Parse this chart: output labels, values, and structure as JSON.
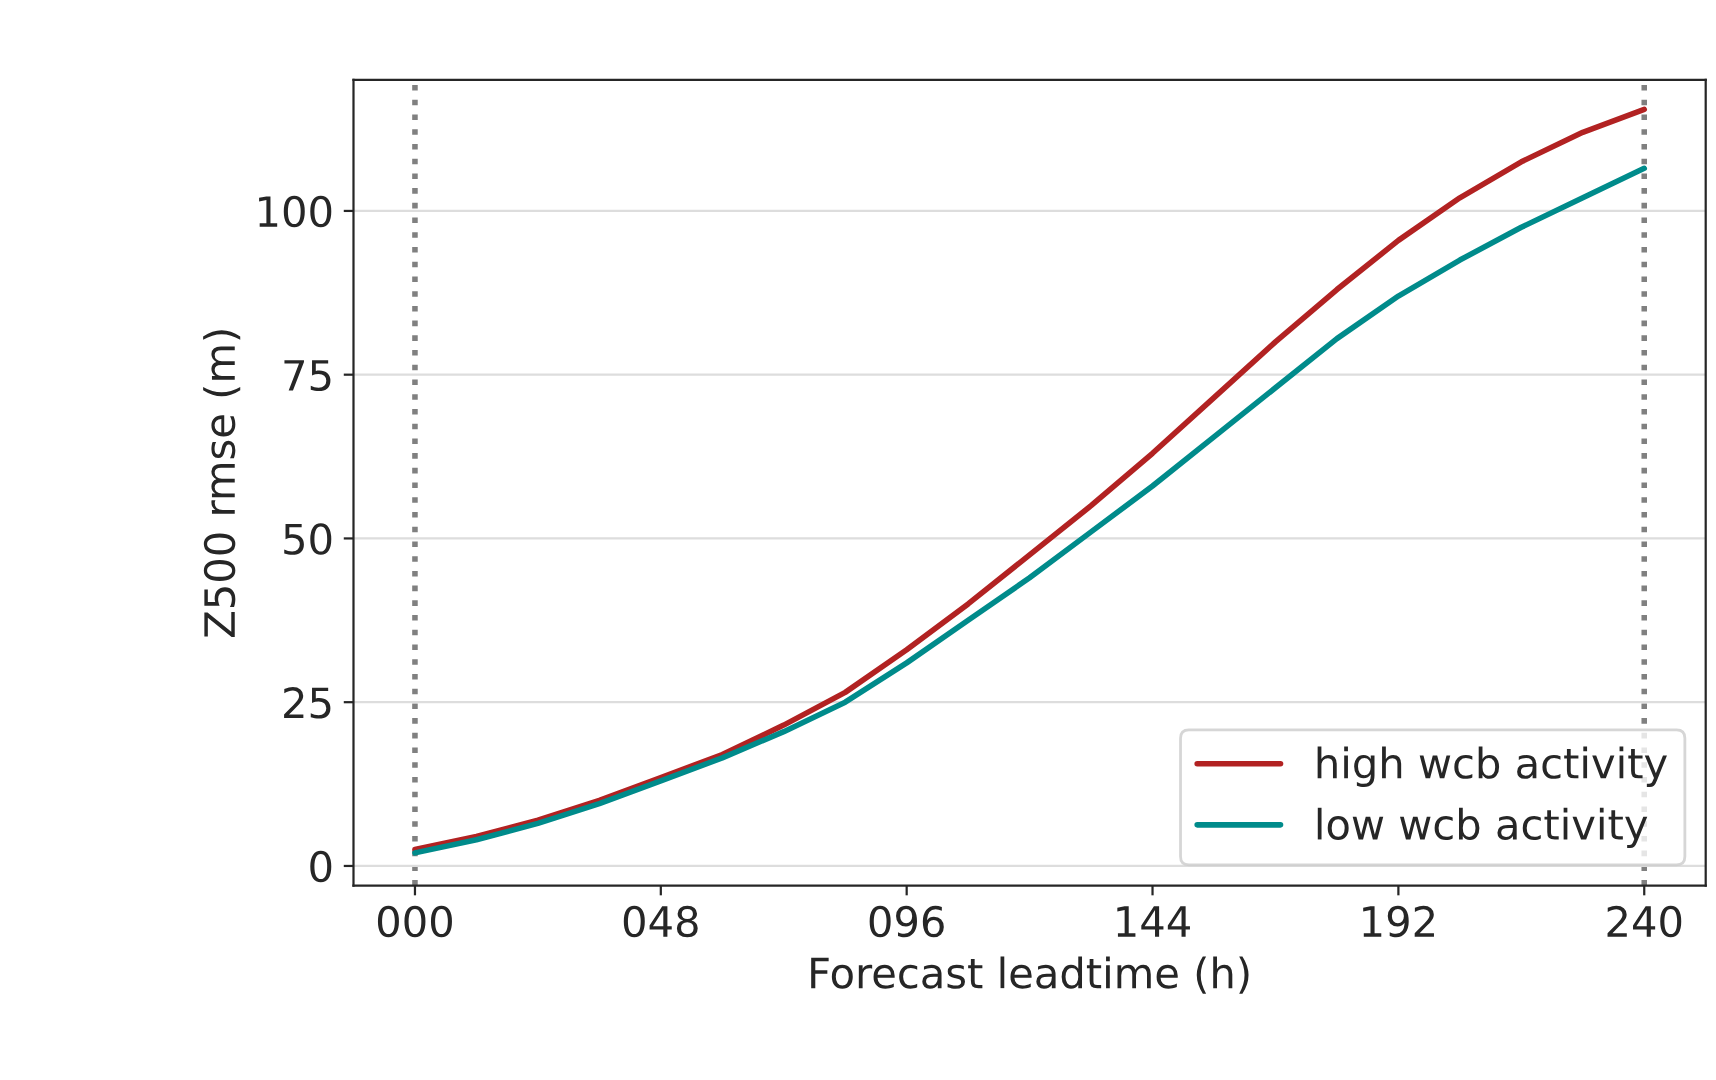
{
  "chart_data": {
    "type": "line",
    "xlabel": "Forecast leadtime (h)",
    "ylabel": "Z500 rmse (m)",
    "x": [
      0,
      12,
      24,
      36,
      48,
      60,
      72,
      84,
      96,
      108,
      120,
      132,
      144,
      156,
      168,
      180,
      192,
      204,
      216,
      228,
      240
    ],
    "series": [
      {
        "name": "high wcb activity",
        "color": "#b22222",
        "values": [
          2.5,
          4.5,
          7,
          10,
          13.5,
          17,
          21.5,
          26.5,
          33,
          40,
          47.5,
          55,
          63,
          71.5,
          80,
          88,
          95.5,
          102,
          107.5,
          112,
          115.5
        ]
      },
      {
        "name": "low wcb activity",
        "color": "#008b8b",
        "values": [
          2,
          4,
          6.5,
          9.5,
          13,
          16.5,
          20.5,
          25,
          31,
          37.5,
          44,
          51,
          58,
          65.5,
          73,
          80.5,
          87,
          92.5,
          97.5,
          102,
          106.5
        ]
      }
    ],
    "xlim": [
      -12,
      252
    ],
    "ylim": [
      -3,
      120
    ],
    "xticks": [
      {
        "value": 0,
        "label": "000"
      },
      {
        "value": 48,
        "label": "048"
      },
      {
        "value": 96,
        "label": "096"
      },
      {
        "value": 144,
        "label": "144"
      },
      {
        "value": 192,
        "label": "192"
      },
      {
        "value": 240,
        "label": "240"
      }
    ],
    "yticks": [
      0,
      25,
      50,
      75,
      100
    ],
    "ref_lines": [
      {
        "axis": "x",
        "value": 0,
        "color": "#808080",
        "line_style": "dotted"
      },
      {
        "axis": "x",
        "value": 240,
        "color": "#808080",
        "line_style": "dotted"
      }
    ],
    "grid": "y",
    "legend": "bottom right",
    "line_style": "solid"
  }
}
